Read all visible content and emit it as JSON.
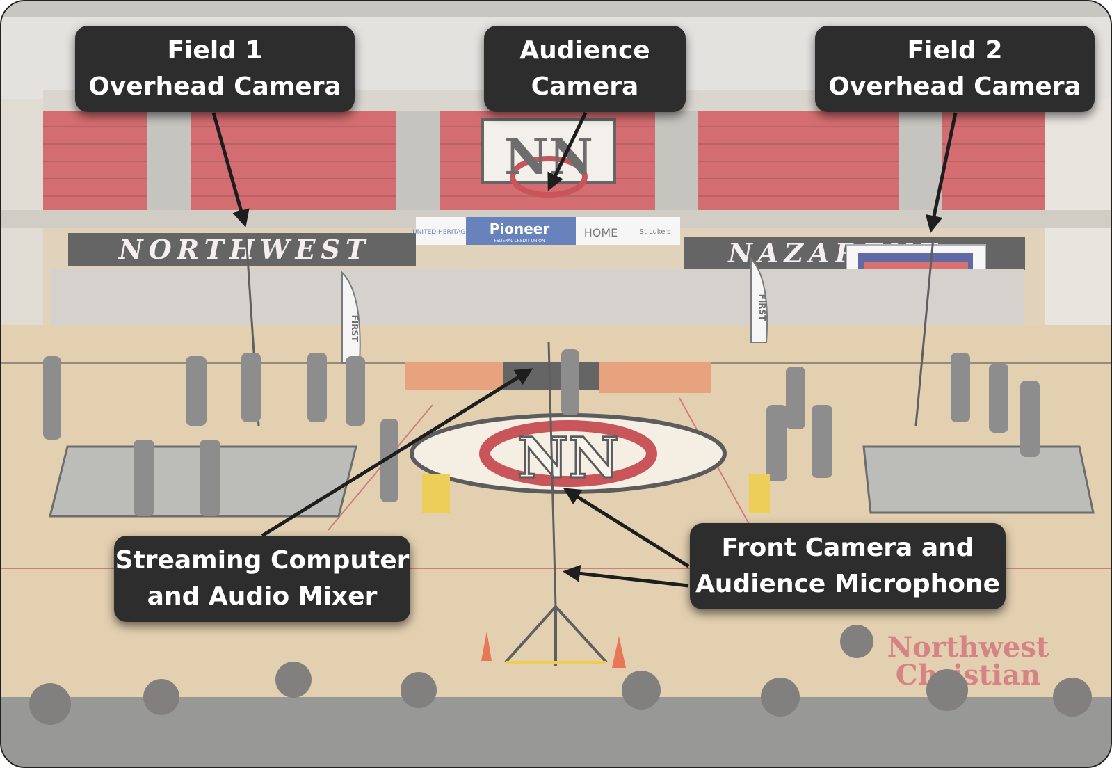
{
  "callouts": {
    "field1": {
      "line1": "Field 1",
      "line2": "Overhead Camera"
    },
    "audience_camera": {
      "line1": "Audience",
      "line2": "Camera"
    },
    "field2": {
      "line1": "Field 2",
      "line2": "Overhead Camera"
    },
    "streaming": {
      "line1": "Streaming Computer",
      "line2": "and Audio Mixer"
    },
    "front": {
      "line1": "Front Camera and",
      "line2": "Audience Microphone"
    }
  },
  "scene_text": {
    "banner_left": "NORTHWEST",
    "banner_right": "NAZARENE",
    "sponsor_1": "UNITED HERITAGE",
    "sponsor_2": "Pioneer",
    "sponsor_2_sub": "FEDERAL CREDIT UNION",
    "sponsor_3": "HOME",
    "sponsor_4": "St Luke's",
    "floor_text_1": "Northwest",
    "floor_text_2": "Christian",
    "flag_text": "FIRST"
  },
  "colors": {
    "callout_bg": "#2d2d2d",
    "callout_text": "#ffffff",
    "arrow": "#1e1e1e",
    "seat_red": "#c8444a",
    "floor": "#dcc39a",
    "logo_red": "#b8262c"
  }
}
